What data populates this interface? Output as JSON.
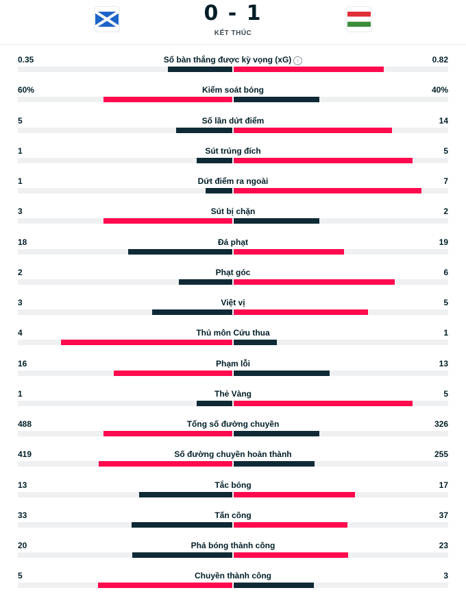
{
  "match": {
    "score": "0 - 1",
    "status": "KẾT THÚC",
    "home_flag": "scotland-flag",
    "away_flag": "hungary-flag"
  },
  "colors": {
    "leader": "#ff0a4e",
    "trailer": "#0f2a36",
    "track": "#eef0f2"
  },
  "stats": [
    {
      "label": "Số bàn thắng được kỳ vọng (xG)",
      "home": "0.35",
      "away": "0.82",
      "home_frac": 0.3,
      "away_frac": 0.7,
      "info": true
    },
    {
      "label": "Kiểm soát bóng",
      "home": "60%",
      "away": "40%",
      "home_frac": 0.6,
      "away_frac": 0.4
    },
    {
      "label": "Số lần dứt điểm",
      "home": "5",
      "away": "14",
      "home_frac": 0.263,
      "away_frac": 0.737
    },
    {
      "label": "Sút trúng đích",
      "home": "1",
      "away": "5",
      "home_frac": 0.167,
      "away_frac": 0.833
    },
    {
      "label": "Dứt điểm ra ngoài",
      "home": "1",
      "away": "7",
      "home_frac": 0.125,
      "away_frac": 0.875
    },
    {
      "label": "Sút bị chặn",
      "home": "3",
      "away": "2",
      "home_frac": 0.6,
      "away_frac": 0.4
    },
    {
      "label": "Đá phạt",
      "home": "18",
      "away": "19",
      "home_frac": 0.486,
      "away_frac": 0.514
    },
    {
      "label": "Phạt góc",
      "home": "2",
      "away": "6",
      "home_frac": 0.25,
      "away_frac": 0.75
    },
    {
      "label": "Việt vị",
      "home": "3",
      "away": "5",
      "home_frac": 0.375,
      "away_frac": 0.625
    },
    {
      "label": "Thủ môn Cứu thua",
      "home": "4",
      "away": "1",
      "home_frac": 0.8,
      "away_frac": 0.2
    },
    {
      "label": "Phạm lỗi",
      "home": "16",
      "away": "13",
      "home_frac": 0.552,
      "away_frac": 0.448
    },
    {
      "label": "Thẻ Vàng",
      "home": "1",
      "away": "5",
      "home_frac": 0.167,
      "away_frac": 0.833
    },
    {
      "label": "Tổng số đường chuyền",
      "home": "488",
      "away": "326",
      "home_frac": 0.6,
      "away_frac": 0.4
    },
    {
      "label": "Số đường chuyền hoàn thành",
      "home": "419",
      "away": "255",
      "home_frac": 0.622,
      "away_frac": 0.378
    },
    {
      "label": "Tắc bóng",
      "home": "13",
      "away": "17",
      "home_frac": 0.433,
      "away_frac": 0.567
    },
    {
      "label": "Tấn công",
      "home": "33",
      "away": "37",
      "home_frac": 0.471,
      "away_frac": 0.529
    },
    {
      "label": "Phá bóng thành công",
      "home": "20",
      "away": "23",
      "home_frac": 0.465,
      "away_frac": 0.535
    },
    {
      "label": "Chuyền thành công",
      "home": "5",
      "away": "3",
      "home_frac": 0.625,
      "away_frac": 0.375
    }
  ]
}
